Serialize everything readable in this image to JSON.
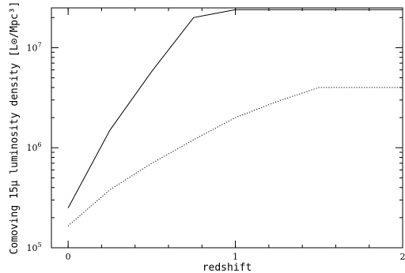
{
  "chart_data": {
    "type": "line",
    "title": "",
    "xlabel": "redshift",
    "ylabel": "Comoving 15μ luminosity density [L⊙/Mpc³]",
    "xlim": [
      -0.1,
      2.0
    ],
    "ylim": [
      100000,
      25000000
    ],
    "yscale": "log",
    "grid": false,
    "legend": "none",
    "x_ticks": [
      {
        "value": 0,
        "label": "0"
      },
      {
        "value": 1,
        "label": "1"
      },
      {
        "value": 2,
        "label": "2"
      }
    ],
    "y_ticks": [
      {
        "value": 100000,
        "mantissa": "10",
        "exponent": "5"
      },
      {
        "value": 1000000,
        "mantissa": "10",
        "exponent": "6"
      },
      {
        "value": 10000000,
        "mantissa": "10",
        "exponent": "7"
      }
    ],
    "series": [
      {
        "style": "solid",
        "color": "#000000",
        "x": [
          0,
          0.25,
          0.5,
          0.75,
          1.0,
          1.5,
          2.0
        ],
        "y": [
          250000,
          1500000,
          5800000,
          20000000,
          24000000,
          24000000,
          24000000
        ]
      },
      {
        "style": "dotted",
        "color": "#000000",
        "x": [
          0,
          0.25,
          0.5,
          0.75,
          1.0,
          1.25,
          1.5,
          2.0
        ],
        "y": [
          165000,
          380000,
          700000,
          1200000,
          2000000,
          2900000,
          4000000,
          4000000
        ]
      }
    ]
  }
}
